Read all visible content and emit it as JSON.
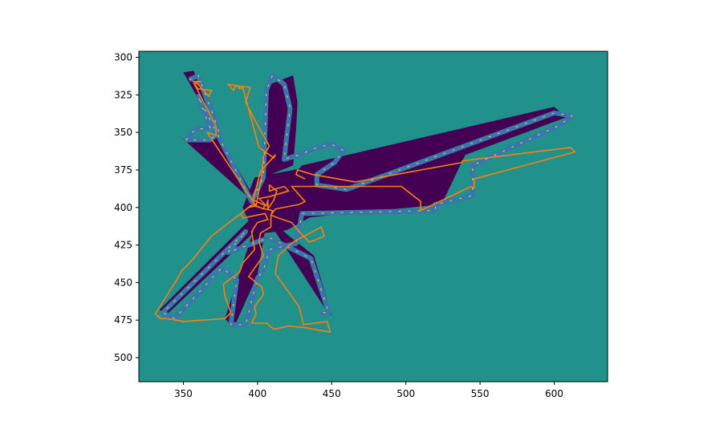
{
  "chart_data": {
    "type": "heatmap",
    "title": "",
    "xlabel": "",
    "ylabel": "",
    "xlim": [
      320,
      636
    ],
    "ylim": [
      516,
      296
    ],
    "y_inverted": true,
    "grid": false,
    "legend": "none",
    "x_ticks": [
      350,
      400,
      450,
      500,
      550,
      600
    ],
    "y_ticks": [
      300,
      325,
      350,
      375,
      400,
      425,
      450,
      475,
      500
    ],
    "colors": {
      "background_cell": "#21918c",
      "occupied_cell": "#440154",
      "edge_light": "#bddf26",
      "edge_green": "#5ec962",
      "inflation": "#3b75af",
      "path": "#ff7f0e"
    },
    "occupied_region": {
      "center": [
        402,
        401
      ],
      "arms": [
        {
          "name": "upper-left arm",
          "points": [
            [
              350,
              310
            ],
            [
              357,
              309
            ],
            [
              372,
              350
            ],
            [
              368,
              356
            ],
            [
              352,
              356
            ],
            [
              346,
              351
            ],
            [
              398,
              397
            ]
          ]
        },
        {
          "name": "upper-middle arm",
          "points": [
            [
              408,
              318
            ],
            [
              424,
              312
            ],
            [
              427,
              330
            ],
            [
              426,
              348
            ],
            [
              424,
              372
            ],
            [
              404,
              380
            ]
          ]
        },
        {
          "name": "right arm",
          "points": [
            [
              430,
              372
            ],
            [
              600,
              333
            ],
            [
              608,
              340
            ],
            [
              540,
              365
            ],
            [
              524,
              398
            ],
            [
              420,
              408
            ]
          ]
        },
        {
          "name": "lower-left arm",
          "points": [
            [
              334,
              468
            ],
            [
              338,
              472
            ],
            [
              396,
              418
            ],
            [
              398,
              408
            ]
          ]
        },
        {
          "name": "lower-middle arm",
          "points": [
            [
              378,
              474
            ],
            [
              384,
              480
            ],
            [
              400,
              445
            ],
            [
              406,
              410
            ]
          ]
        },
        {
          "name": "lower-right arm",
          "points": [
            [
              446,
              468
            ],
            [
              450,
              472
            ],
            [
              438,
              432
            ],
            [
              420,
              418
            ]
          ]
        }
      ]
    },
    "inflation_outline": [
      [
        354,
        315
      ],
      [
        360,
        312
      ],
      [
        370,
        338
      ],
      [
        374,
        350
      ],
      [
        368,
        355
      ],
      [
        352,
        355
      ],
      [
        358,
        348
      ],
      [
        368,
        347
      ],
      [
        360,
        326
      ],
      [
        396,
        396
      ],
      [
        404,
        380
      ],
      [
        406,
        322
      ],
      [
        410,
        312
      ],
      [
        418,
        318
      ],
      [
        422,
        334
      ],
      [
        420,
        350
      ],
      [
        418,
        368
      ],
      [
        428,
        365
      ],
      [
        440,
        360
      ],
      [
        450,
        358
      ],
      [
        458,
        362
      ],
      [
        452,
        370
      ],
      [
        440,
        378
      ],
      [
        440,
        385
      ],
      [
        460,
        388
      ],
      [
        600,
        337
      ],
      [
        612,
        339
      ],
      [
        604,
        345
      ],
      [
        545,
        372
      ],
      [
        545,
        392
      ],
      [
        520,
        398
      ],
      [
        520,
        402
      ],
      [
        430,
        404
      ],
      [
        426,
        424
      ],
      [
        408,
        428
      ],
      [
        404,
        442
      ],
      [
        400,
        447
      ],
      [
        392,
        478
      ],
      [
        382,
        478
      ],
      [
        386,
        448
      ],
      [
        376,
        440
      ],
      [
        344,
        474
      ],
      [
        336,
        470
      ],
      [
        392,
        416
      ],
      [
        380,
        430
      ],
      [
        408,
        420
      ],
      [
        428,
        430
      ],
      [
        436,
        434
      ],
      [
        448,
        470
      ],
      [
        442,
        470
      ]
    ],
    "path": {
      "name": "path",
      "x": [
        356,
        362,
        358,
        360,
        367,
        369,
        360,
        357,
        372,
        372,
        366,
        399,
        403,
        404,
        408,
        400,
        392,
        395,
        385,
        384,
        382,
        380,
        387,
        388,
        390,
        401,
        411,
        412,
        402,
        397,
        406,
        407,
        407,
        411,
        413,
        408,
        408,
        418,
        421,
        407,
        401,
        405,
        404,
        397,
        395,
        389,
        390,
        405,
        407,
        400,
        396,
        398,
        390,
        388,
        377,
        378,
        382,
        378,
        349,
        351,
        339,
        335,
        331,
        345,
        349,
        356,
        369,
        394,
        398,
        405,
        410,
        409,
        409,
        402,
        401,
        404,
        394,
        403,
        404,
        398,
        399,
        396,
        406,
        411,
        421,
        432,
        449,
        447,
        431,
        428,
        412,
        414,
        424,
        443,
        445,
        438,
        435,
        429,
        423,
        414,
        409,
        412,
        428,
        432,
        423,
        437,
        447,
        460,
        497,
        510,
        510,
        544,
        546,
        546,
        614,
        611,
        538,
        538,
        466,
        437,
        427,
        426,
        432
      ],
      "y": [
        316,
        316,
        317,
        318,
        326,
        322,
        321,
        317,
        346,
        352,
        350,
        399,
        378,
        366,
        359,
        345,
        330,
        320,
        319,
        322,
        320,
        318,
        319,
        321,
        320,
        360,
        367,
        365,
        376,
        395,
        399,
        395,
        401,
        395,
        389,
        385,
        389,
        386,
        389,
        393,
        394,
        398,
        401,
        398,
        399,
        404,
        407,
        404,
        408,
        410,
        416,
        428,
        437,
        443,
        451,
        459,
        470,
        474,
        476,
        476,
        474,
        474,
        471,
        449,
        442,
        435,
        419,
        400,
        399,
        401,
        402,
        406,
        413,
        417,
        423,
        432,
        446,
        453,
        458,
        466,
        471,
        477,
        477,
        481,
        479,
        480,
        483,
        476,
        478,
        466,
        444,
        432,
        423,
        413,
        419,
        422,
        423,
        417,
        410,
        407,
        405,
        401,
        398,
        396,
        386,
        386,
        386,
        386,
        386,
        396,
        402,
        386,
        387,
        381,
        363,
        360,
        369,
        370,
        383,
        378,
        375,
        378,
        381
      ]
    }
  }
}
